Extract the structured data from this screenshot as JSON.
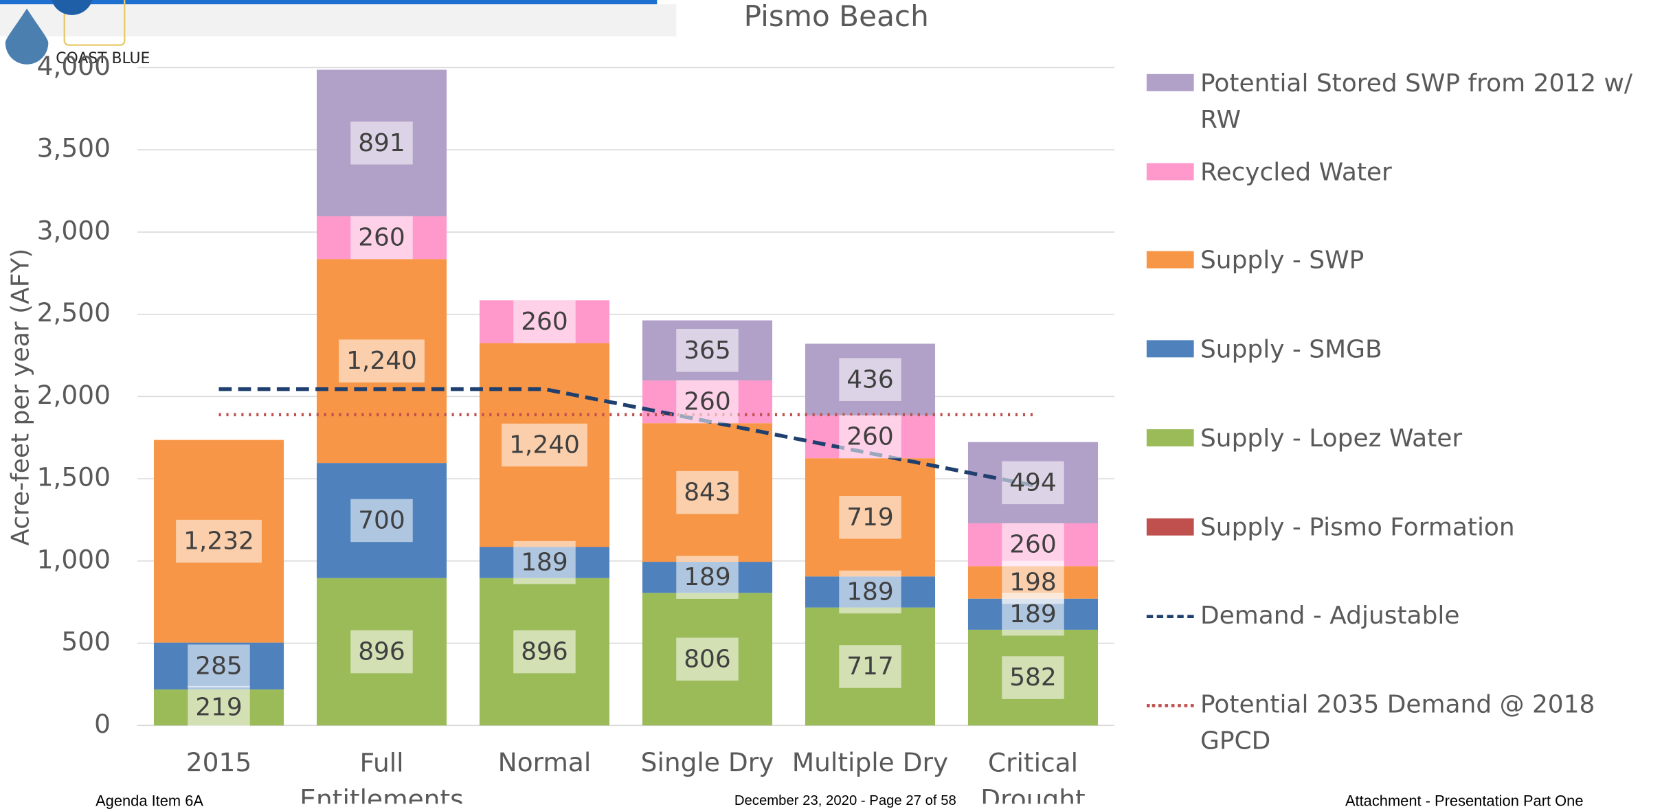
{
  "chart_data": {
    "type": "bar",
    "stacked": true,
    "title": "Pismo Beach",
    "y_label": "Acre-feet per year (AFY)",
    "logo_text": "COAST  BLUE",
    "footer": {
      "left": "Agenda Item 6A",
      "center": "December 23, 2020 - Page 27 of 58",
      "right": "Attachment - Presentation Part One"
    },
    "categories": [
      "2015",
      "Full Entitlements",
      "Normal",
      "Single Dry",
      "Multiple Dry",
      "Critical Drought"
    ],
    "ylim": [
      0,
      4000
    ],
    "yticks": [
      0,
      500,
      {
        "value": 1000,
        "label": "1,000"
      },
      {
        "value": 1500,
        "label": "1,500"
      },
      {
        "value": 2000,
        "label": "2,000"
      },
      {
        "value": 2500,
        "label": "2,500"
      },
      {
        "value": 3000,
        "label": "3,000"
      },
      {
        "value": 3500,
        "label": "3,500"
      },
      {
        "value": 4000,
        "label": "4,000"
      }
    ],
    "grid": true,
    "legend": "right",
    "series": [
      {
        "name": "Supply - Pismo Formation",
        "color": "#c0504d",
        "values": [
          null,
          null,
          null,
          null,
          null,
          null
        ]
      },
      {
        "name": "Supply - Lopez Water",
        "color": "#9bbb59",
        "values": [
          219,
          896,
          896,
          806,
          717,
          582
        ]
      },
      {
        "name": "Supply - SMGB",
        "color": "#4f81bd",
        "values": [
          285,
          700,
          189,
          189,
          189,
          189
        ]
      },
      {
        "name": "Supply - SWP",
        "color": "#f79646",
        "values": [
          1232,
          1240,
          1240,
          843,
          719,
          198
        ],
        "value_labels": [
          "1,232",
          "1,240",
          "1,240",
          "843",
          "719",
          "198"
        ]
      },
      {
        "name": "Recycled Water",
        "color": "#ff99cc",
        "values": [
          null,
          260,
          260,
          260,
          260,
          260
        ]
      },
      {
        "name": "Potential Stored SWP from 2012 w/ RW",
        "color": "#b1a0c7",
        "values": [
          null,
          891,
          null,
          365,
          436,
          494
        ]
      }
    ],
    "lines": [
      {
        "name": "Demand - Adjustable",
        "color": "#1f3f6e",
        "dash": "dashed",
        "values": [
          2045,
          2045,
          2045,
          1850,
          1655,
          1460
        ]
      },
      {
        "name": "Potential 2035 Demand @ 2018 GPCD",
        "color": "#c0504d",
        "dash": "dotted",
        "values": [
          1890,
          1890,
          1890,
          1890,
          1890,
          1890
        ]
      }
    ]
  }
}
